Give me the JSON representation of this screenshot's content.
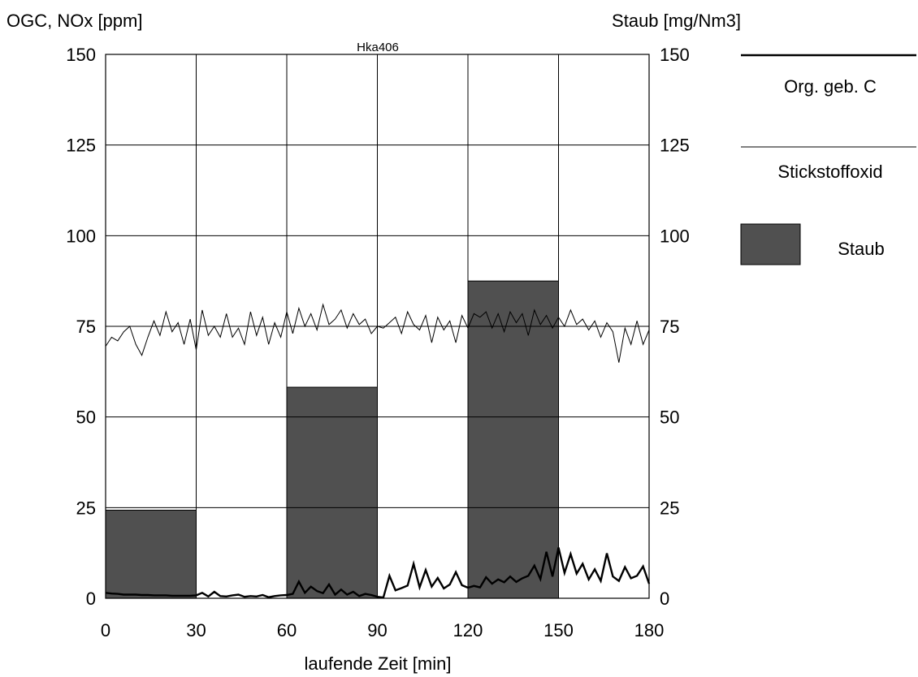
{
  "chart_data": {
    "type": "bar+line",
    "title": "Hka406",
    "xlabel": "laufende Zeit [min]",
    "ylabel_left": "OGC, NOx [ppm]",
    "ylabel_right": "Staub [mg/Nm3]",
    "xlim": [
      0,
      180
    ],
    "ylim_left": [
      0,
      150
    ],
    "ylim_right": [
      0,
      150
    ],
    "x_ticks": [
      "0",
      "30",
      "60",
      "90",
      "120",
      "150",
      "180"
    ],
    "y_ticks_left": [
      "0",
      "25",
      "50",
      "75",
      "100",
      "125",
      "150"
    ],
    "y_ticks_right": [
      "0",
      "25",
      "50",
      "75",
      "100",
      "125",
      "150"
    ],
    "grid": true,
    "legend_position": "right",
    "bars": {
      "name": "Staub",
      "color": "#505050",
      "items": [
        {
          "x0": 0,
          "x1": 30,
          "value": 24.3
        },
        {
          "x0": 60,
          "x1": 90,
          "value": 58.2
        },
        {
          "x0": 120,
          "x1": 150,
          "value": 87.5
        }
      ]
    },
    "series": [
      {
        "name": "Org. geb. C",
        "color": "#000000",
        "style": "thick",
        "x": [
          0,
          2,
          4,
          6,
          8,
          10,
          12,
          14,
          16,
          18,
          20,
          22,
          24,
          26,
          28,
          30,
          32,
          34,
          36,
          38,
          40,
          42,
          44,
          46,
          48,
          50,
          52,
          54,
          56,
          58,
          60,
          62,
          64,
          66,
          68,
          70,
          72,
          74,
          76,
          78,
          80,
          82,
          84,
          86,
          88,
          90,
          92,
          94,
          96,
          98,
          100,
          102,
          104,
          106,
          108,
          110,
          112,
          114,
          116,
          118,
          120,
          122,
          124,
          126,
          128,
          130,
          132,
          134,
          136,
          138,
          140,
          142,
          144,
          146,
          148,
          150,
          152,
          154,
          156,
          158,
          160,
          162,
          164,
          166,
          168,
          170,
          172,
          174,
          176,
          178,
          180
        ],
        "values": [
          1.5,
          1.3,
          1.2,
          1.0,
          1.0,
          1.0,
          0.9,
          0.9,
          0.8,
          0.8,
          0.8,
          0.7,
          0.7,
          0.7,
          0.7,
          0.8,
          1.5,
          0.5,
          1.8,
          0.6,
          0.5,
          0.8,
          1.0,
          0.4,
          0.6,
          0.5,
          0.9,
          0.3,
          0.6,
          0.8,
          0.9,
          1.2,
          4.6,
          1.5,
          3.2,
          2.0,
          1.4,
          3.8,
          1.0,
          2.4,
          1.0,
          1.8,
          0.6,
          1.2,
          0.9,
          0.4,
          0.2,
          6.2,
          2.2,
          2.8,
          3.5,
          9.5,
          3.0,
          7.8,
          3.2,
          5.6,
          2.7,
          3.8,
          7.2,
          3.6,
          2.9,
          3.4,
          3.0,
          5.8,
          4.0,
          5.2,
          4.4,
          6.0,
          4.5,
          5.5,
          6.2,
          9.0,
          5.3,
          12.8,
          6.0,
          14.0,
          7.0,
          12.2,
          6.8,
          9.5,
          5.2,
          8.0,
          4.8,
          12.4,
          6.0,
          4.8,
          8.6,
          5.5,
          6.2,
          8.8,
          4.0
        ]
      },
      {
        "name": "Stickstoffoxid",
        "color": "#000000",
        "style": "thin",
        "x": [
          0,
          2,
          4,
          6,
          8,
          10,
          12,
          14,
          16,
          18,
          20,
          22,
          24,
          26,
          28,
          30,
          32,
          34,
          36,
          38,
          40,
          42,
          44,
          46,
          48,
          50,
          52,
          54,
          56,
          58,
          60,
          62,
          64,
          66,
          68,
          70,
          72,
          74,
          76,
          78,
          80,
          82,
          84,
          86,
          88,
          90,
          92,
          94,
          96,
          98,
          100,
          102,
          104,
          106,
          108,
          110,
          112,
          114,
          116,
          118,
          120,
          122,
          124,
          126,
          128,
          130,
          132,
          134,
          136,
          138,
          140,
          142,
          144,
          146,
          148,
          150,
          152,
          154,
          156,
          158,
          160,
          162,
          164,
          166,
          168,
          170,
          172,
          174,
          176,
          178,
          180
        ],
        "values": [
          69.5,
          72.0,
          71.0,
          73.5,
          75.0,
          70.0,
          67.0,
          72.0,
          76.5,
          72.5,
          79.0,
          73.5,
          76.0,
          70.0,
          77.0,
          68.5,
          79.5,
          72.5,
          75.0,
          72.0,
          78.5,
          72.0,
          74.5,
          70.0,
          79.0,
          72.5,
          77.5,
          70.0,
          76.0,
          72.0,
          79.0,
          73.0,
          80.0,
          75.0,
          78.5,
          74.0,
          81.0,
          75.5,
          77.0,
          79.5,
          74.5,
          78.5,
          75.5,
          77.0,
          73.0,
          75.0,
          74.5,
          76.0,
          77.5,
          73.0,
          79.0,
          75.5,
          74.0,
          78.0,
          70.5,
          77.5,
          74.0,
          76.5,
          70.5,
          78.0,
          74.5,
          78.5,
          77.5,
          79.0,
          74.5,
          78.5,
          73.5,
          79.0,
          76.0,
          78.5,
          72.5,
          79.5,
          75.5,
          78.0,
          74.5,
          77.5,
          75.0,
          79.5,
          75.5,
          77.0,
          74.0,
          76.5,
          72.0,
          76.0,
          73.5,
          65.0,
          74.5,
          70.0,
          76.5,
          70.0,
          74.0
        ]
      }
    ],
    "legend": [
      {
        "label": "Org. geb. C",
        "kind": "line-thick"
      },
      {
        "label": "Stickstoffoxid",
        "kind": "line-thin"
      },
      {
        "label": "Staub",
        "kind": "bar"
      }
    ]
  }
}
